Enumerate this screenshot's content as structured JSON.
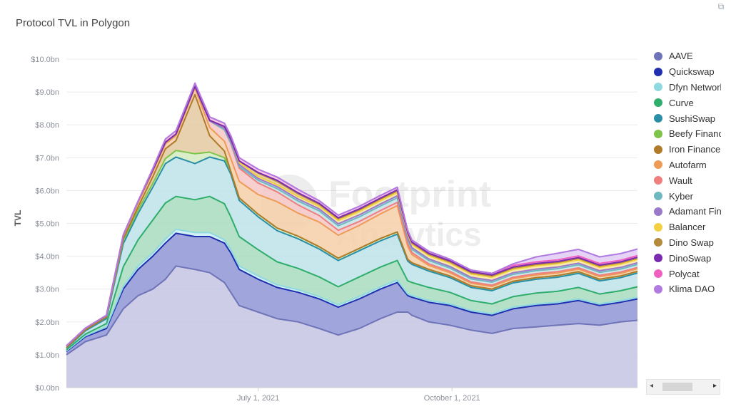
{
  "title": "Protocol TVL in Polygon",
  "expand_icon": "⧉",
  "watermark": {
    "line1": "Footprint",
    "line2": "Analytics"
  },
  "chart_data": {
    "type": "area",
    "stacked": true,
    "ylabel": "TVL",
    "ylim": [
      0,
      10.5
    ],
    "y_ticks": [
      "$0.0bn",
      "$1.0bn",
      "$2.0bn",
      "$3.0bn",
      "$4.0bn",
      "$5.0bn",
      "$6.0bn",
      "$7.0bn",
      "$8.0bn",
      "$9.0bn",
      "$10.0bn"
    ],
    "x_ticks": [
      {
        "label": "July 1, 2021",
        "date": "2021-07-01"
      },
      {
        "label": "October 1, 2021",
        "date": "2021-10-01"
      }
    ],
    "x": [
      "2021-04-01",
      "2021-04-10",
      "2021-04-20",
      "2021-04-28",
      "2021-05-05",
      "2021-05-12",
      "2021-05-18",
      "2021-05-23",
      "2021-06-01",
      "2021-06-08",
      "2021-06-15",
      "2021-06-18",
      "2021-06-22",
      "2021-07-01",
      "2021-07-10",
      "2021-07-20",
      "2021-07-30",
      "2021-08-08",
      "2021-08-18",
      "2021-08-28",
      "2021-09-05",
      "2021-09-10",
      "2021-09-12",
      "2021-09-20",
      "2021-09-30",
      "2021-10-10",
      "2021-10-20",
      "2021-10-30",
      "2021-11-10",
      "2021-11-20",
      "2021-11-30",
      "2021-12-10",
      "2021-12-20",
      "2021-12-28"
    ],
    "legend_position": "right",
    "series": [
      {
        "name": "AAVE",
        "color": "#6f73b8",
        "fill": "#c4c4e3",
        "values": [
          1.0,
          1.4,
          1.6,
          2.4,
          2.8,
          3.0,
          3.3,
          3.7,
          3.6,
          3.5,
          3.2,
          2.9,
          2.5,
          2.3,
          2.1,
          2.0,
          1.8,
          1.6,
          1.8,
          2.1,
          2.3,
          2.3,
          2.2,
          2.0,
          1.9,
          1.75,
          1.65,
          1.8,
          1.85,
          1.9,
          1.95,
          1.9,
          2.0,
          2.05
        ]
      },
      {
        "name": "Quickswap",
        "color": "#1f2fae",
        "fill": "#8f96d6",
        "values": [
          0.1,
          0.15,
          0.2,
          0.6,
          0.8,
          1.0,
          1.1,
          1.0,
          1.0,
          1.1,
          1.2,
          1.2,
          1.1,
          1.0,
          0.95,
          0.9,
          0.9,
          0.85,
          0.9,
          0.9,
          0.9,
          0.5,
          0.55,
          0.6,
          0.6,
          0.55,
          0.55,
          0.6,
          0.65,
          0.65,
          0.7,
          0.6,
          0.6,
          0.65
        ]
      },
      {
        "name": "Dfyn Network",
        "color": "#8fd9e0",
        "fill": "#c9eef1",
        "values": [
          0.02,
          0.03,
          0.05,
          0.08,
          0.1,
          0.1,
          0.12,
          0.12,
          0.12,
          0.12,
          0.1,
          0.1,
          0.1,
          0.1,
          0.08,
          0.08,
          0.07,
          0.07,
          0.07,
          0.07,
          0.07,
          0.05,
          0.05,
          0.05,
          0.05,
          0.05,
          0.05,
          0.05,
          0.05,
          0.05,
          0.05,
          0.05,
          0.05,
          0.05
        ]
      },
      {
        "name": "Curve",
        "color": "#2fae6b",
        "fill": "#a8dcc0",
        "values": [
          0.03,
          0.05,
          0.1,
          0.6,
          0.8,
          1.0,
          1.1,
          1.0,
          1.0,
          1.1,
          1.1,
          1.0,
          0.9,
          0.8,
          0.7,
          0.65,
          0.6,
          0.55,
          0.6,
          0.6,
          0.6,
          0.4,
          0.4,
          0.4,
          0.35,
          0.3,
          0.3,
          0.32,
          0.33,
          0.33,
          0.35,
          0.3,
          0.3,
          0.32
        ]
      },
      {
        "name": "SushiSwap",
        "color": "#2a8fa6",
        "fill": "#bde3ea",
        "values": [
          0.05,
          0.1,
          0.15,
          0.7,
          0.8,
          1.0,
          1.2,
          1.2,
          1.1,
          1.2,
          1.3,
          1.3,
          1.1,
          1.0,
          0.95,
          0.9,
          0.85,
          0.8,
          0.8,
          0.8,
          0.8,
          0.6,
          0.55,
          0.5,
          0.45,
          0.4,
          0.4,
          0.42,
          0.42,
          0.43,
          0.43,
          0.4,
          0.4,
          0.42
        ]
      },
      {
        "name": "Beefy Finance",
        "color": "#7ec44a",
        "fill": "#d4ecc0",
        "values": [
          0.02,
          0.03,
          0.05,
          0.1,
          0.1,
          0.12,
          0.15,
          0.2,
          0.3,
          0.15,
          0.1,
          0.08,
          0.08,
          0.08,
          0.08,
          0.08,
          0.07,
          0.07,
          0.07,
          0.07,
          0.07,
          0.05,
          0.05,
          0.05,
          0.05,
          0.05,
          0.05,
          0.05,
          0.05,
          0.05,
          0.05,
          0.05,
          0.05,
          0.05
        ]
      },
      {
        "name": "Iron Finance",
        "color": "#b07a2a",
        "fill": "#e3c9a0",
        "values": [
          0.0,
          0.0,
          0.0,
          0.05,
          0.1,
          0.2,
          0.3,
          0.3,
          1.8,
          0.5,
          0.2,
          0.0,
          0.0,
          0.0,
          0.0,
          0.0,
          0.0,
          0.0,
          0.0,
          0.0,
          0.0,
          0.0,
          0.0,
          0.0,
          0.0,
          0.0,
          0.0,
          0.0,
          0.0,
          0.0,
          0.0,
          0.0,
          0.0,
          0.0
        ]
      },
      {
        "name": "Autofarm",
        "color": "#ee9b57",
        "fill": "#f5cfa8",
        "values": [
          0.05,
          0.05,
          0.05,
          0.1,
          0.12,
          0.15,
          0.15,
          0.15,
          0.2,
          0.25,
          0.3,
          0.4,
          0.5,
          0.6,
          0.8,
          0.7,
          0.75,
          0.7,
          0.7,
          0.75,
          0.8,
          0.4,
          0.25,
          0.12,
          0.1,
          0.08,
          0.08,
          0.08,
          0.08,
          0.08,
          0.08,
          0.08,
          0.08,
          0.08
        ]
      },
      {
        "name": "Wault",
        "color": "#ef7e7e",
        "fill": "#f7c7c7",
        "values": [
          0.0,
          0.0,
          0.0,
          0.02,
          0.05,
          0.05,
          0.05,
          0.05,
          0.05,
          0.2,
          0.35,
          0.45,
          0.4,
          0.35,
          0.3,
          0.25,
          0.2,
          0.15,
          0.12,
          0.1,
          0.1,
          0.08,
          0.06,
          0.05,
          0.04,
          0.04,
          0.04,
          0.04,
          0.04,
          0.04,
          0.04,
          0.04,
          0.04,
          0.04
        ]
      },
      {
        "name": "Kyber",
        "color": "#6fb8c0",
        "fill": "#c6e3e6",
        "values": [
          0.0,
          0.0,
          0.0,
          0.0,
          0.0,
          0.0,
          0.0,
          0.0,
          0.0,
          0.0,
          0.0,
          0.02,
          0.05,
          0.08,
          0.1,
          0.12,
          0.14,
          0.14,
          0.14,
          0.14,
          0.14,
          0.12,
          0.1,
          0.1,
          0.1,
          0.09,
          0.09,
          0.09,
          0.09,
          0.09,
          0.09,
          0.09,
          0.09,
          0.09
        ]
      },
      {
        "name": "Adamant Finance",
        "color": "#9a7ac8",
        "fill": "#d8caec",
        "values": [
          0.0,
          0.0,
          0.0,
          0.0,
          0.0,
          0.0,
          0.0,
          0.0,
          0.0,
          0.0,
          0.05,
          0.06,
          0.06,
          0.06,
          0.06,
          0.06,
          0.06,
          0.06,
          0.06,
          0.06,
          0.06,
          0.05,
          0.05,
          0.05,
          0.05,
          0.05,
          0.05,
          0.05,
          0.05,
          0.05,
          0.05,
          0.05,
          0.05,
          0.05
        ]
      },
      {
        "name": "Balancer",
        "color": "#f2cf43",
        "fill": "#f8e6a0",
        "values": [
          0.0,
          0.0,
          0.0,
          0.0,
          0.0,
          0.0,
          0.0,
          0.0,
          0.0,
          0.02,
          0.05,
          0.06,
          0.06,
          0.06,
          0.06,
          0.08,
          0.08,
          0.1,
          0.1,
          0.1,
          0.1,
          0.1,
          0.1,
          0.1,
          0.1,
          0.1,
          0.1,
          0.1,
          0.1,
          0.1,
          0.1,
          0.1,
          0.1,
          0.1
        ]
      },
      {
        "name": "Dino Swap",
        "color": "#b48a3c",
        "fill": "#e0c99a",
        "values": [
          0.0,
          0.0,
          0.0,
          0.0,
          0.0,
          0.0,
          0.0,
          0.0,
          0.0,
          0.0,
          0.0,
          0.0,
          0.05,
          0.1,
          0.1,
          0.08,
          0.06,
          0.05,
          0.05,
          0.05,
          0.05,
          0.04,
          0.04,
          0.04,
          0.04,
          0.04,
          0.04,
          0.04,
          0.04,
          0.04,
          0.04,
          0.04,
          0.04,
          0.04
        ]
      },
      {
        "name": "DinoSwap",
        "color": "#7a2bb0",
        "fill": "#c8a8e0",
        "values": [
          0.0,
          0.0,
          0.0,
          0.0,
          0.0,
          0.0,
          0.0,
          0.0,
          0.0,
          0.0,
          0.0,
          0.0,
          0.0,
          0.02,
          0.03,
          0.03,
          0.03,
          0.03,
          0.03,
          0.03,
          0.03,
          0.03,
          0.03,
          0.03,
          0.03,
          0.03,
          0.03,
          0.03,
          0.03,
          0.03,
          0.03,
          0.03,
          0.03,
          0.03
        ]
      },
      {
        "name": "Polycat",
        "color": "#f060c0",
        "fill": "#f8c0e4",
        "values": [
          0.0,
          0.0,
          0.0,
          0.0,
          0.0,
          0.05,
          0.1,
          0.1,
          0.1,
          0.1,
          0.1,
          0.1,
          0.1,
          0.1,
          0.1,
          0.1,
          0.08,
          0.08,
          0.08,
          0.08,
          0.08,
          0.06,
          0.06,
          0.06,
          0.05,
          0.05,
          0.05,
          0.05,
          0.05,
          0.05,
          0.05,
          0.05,
          0.05,
          0.05
        ]
      },
      {
        "name": "Klima DAO",
        "color": "#b07ae0",
        "fill": "#e0cdf4",
        "values": [
          0.0,
          0.0,
          0.0,
          0.0,
          0.0,
          0.0,
          0.0,
          0.0,
          0.0,
          0.0,
          0.0,
          0.0,
          0.0,
          0.0,
          0.0,
          0.0,
          0.0,
          0.0,
          0.0,
          0.0,
          0.0,
          0.0,
          0.0,
          0.0,
          0.0,
          0.0,
          0.0,
          0.05,
          0.15,
          0.2,
          0.2,
          0.2,
          0.2,
          0.2
        ]
      }
    ]
  }
}
